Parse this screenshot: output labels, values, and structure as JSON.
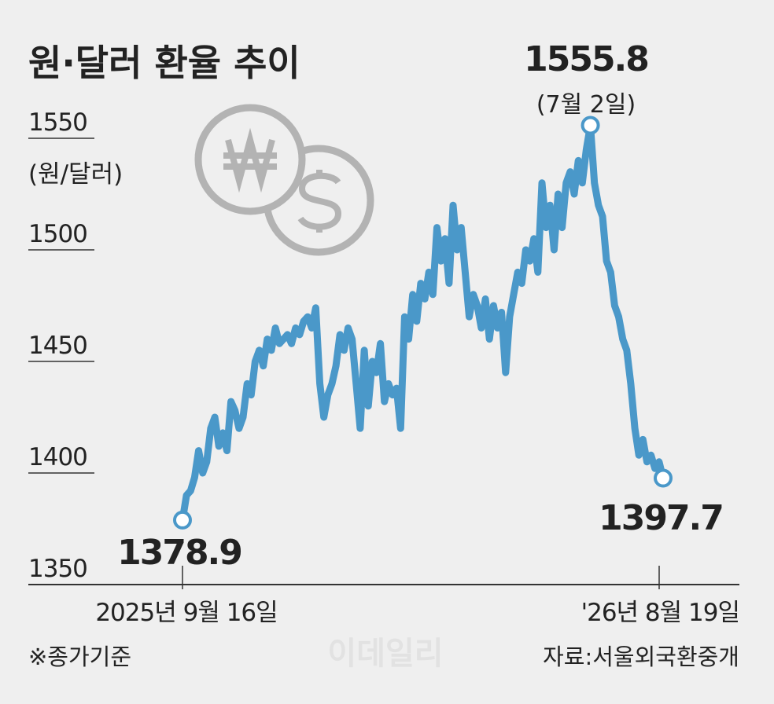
{
  "chart_data": {
    "type": "line",
    "title": "원·달러 환율 추이",
    "y_label": "(원/달러)",
    "categories": [
      "2025년 9월 16일",
      null,
      null,
      null,
      null,
      null,
      null,
      null,
      null,
      null,
      null,
      null,
      null,
      null,
      null,
      null,
      null,
      null,
      null,
      null,
      null,
      null,
      null,
      null,
      null,
      null,
      null,
      null,
      null,
      null,
      null,
      null,
      null,
      null,
      null,
      null,
      null,
      null,
      null,
      null,
      null,
      null,
      null,
      null,
      null,
      null,
      null,
      null,
      null,
      null,
      null,
      null,
      null,
      null,
      null,
      null,
      null,
      null,
      null,
      null,
      null,
      null,
      null,
      null,
      null,
      null,
      null,
      null,
      null,
      null,
      null,
      null,
      null,
      null,
      null,
      null,
      null,
      null,
      null,
      null,
      null,
      null,
      null,
      null,
      null,
      null,
      null,
      null,
      null,
      null,
      null,
      null,
      null,
      null,
      null,
      null,
      null,
      null,
      null,
      null,
      null,
      null,
      null,
      null,
      null,
      null,
      null,
      null,
      null,
      null,
      null,
      null,
      null,
      null,
      null,
      null,
      null,
      null,
      null,
      "'26년 8월 19일"
    ],
    "series": [
      {
        "name": "원·달러 환율",
        "color": "#4a98c9",
        "values": [
          1378.9,
          1390,
          1392,
          1398,
          1410,
          1400,
          1405,
          1420,
          1425,
          1412,
          1418,
          1410,
          1432,
          1428,
          1420,
          1425,
          1440,
          1435,
          1450,
          1455,
          1448,
          1460,
          1455,
          1465,
          1458,
          1460,
          1462,
          1458,
          1465,
          1462,
          1468,
          1470,
          1465,
          1474,
          1440,
          1425,
          1435,
          1440,
          1448,
          1462,
          1455,
          1465,
          1460,
          1440,
          1420,
          1455,
          1430,
          1450,
          1445,
          1458,
          1432,
          1440,
          1435,
          1438,
          1420,
          1470,
          1460,
          1480,
          1468,
          1485,
          1478,
          1490,
          1480,
          1510,
          1495,
          1505,
          1485,
          1520,
          1500,
          1510,
          1490,
          1470,
          1480,
          1475,
          1465,
          1478,
          1460,
          1475,
          1465,
          1472,
          1445,
          1470,
          1480,
          1490,
          1485,
          1500,
          1495,
          1505,
          1490,
          1530,
          1510,
          1520,
          1500,
          1525,
          1510,
          1530,
          1535,
          1525,
          1540,
          1530,
          1545,
          1555.8,
          1530,
          1520,
          1515,
          1495,
          1490,
          1475,
          1470,
          1460,
          1455,
          1440,
          1420,
          1408,
          1415,
          1405,
          1408,
          1402,
          1405,
          1397.7
        ]
      }
    ],
    "highlight_points": [
      0,
      101,
      119
    ],
    "peak_note": "(7월 2일)",
    "ylim": [
      1350,
      1560
    ],
    "yticks": [
      1350,
      1400,
      1450,
      1500,
      1550
    ],
    "note": "※종가기준",
    "source": "자료:서울외국환중개",
    "watermark": "이데일리"
  }
}
